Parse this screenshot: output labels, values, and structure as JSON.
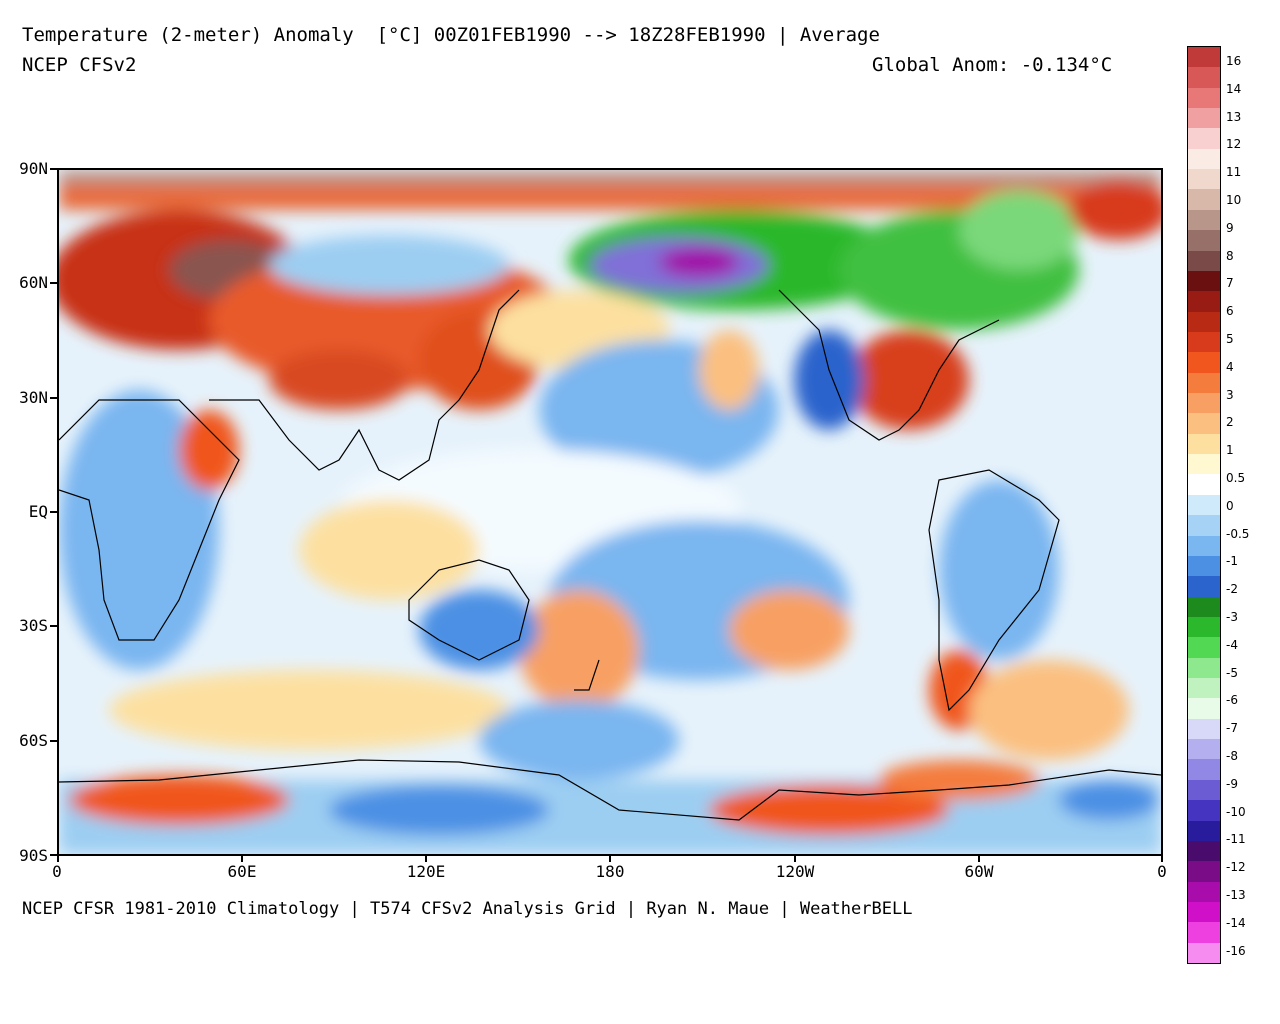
{
  "header": {
    "title": "Temperature (2-meter) Anomaly  [°C] 00Z01FEB1990 --> 18Z28FEB1990 | Average",
    "model": "NCEP CFSv2",
    "global_anom": "Global Anom: -0.134°C"
  },
  "footer": "NCEP CFSR 1981-2010 Climatology | T574 CFSv2 Analysis Grid | Ryan N. Maue | WeatherBELL",
  "lat_labels": [
    "90N",
    "60N",
    "30N",
    "EQ",
    "30S",
    "60S",
    "90S"
  ],
  "lon_labels": [
    "0",
    "60E",
    "120E",
    "180",
    "120W",
    "60W",
    "0"
  ],
  "colorbar": {
    "labels": [
      "16",
      "14",
      "13",
      "12",
      "11",
      "10",
      "9",
      "8",
      "7",
      "6",
      "5",
      "4",
      "3",
      "2",
      "1",
      "0.5",
      "0",
      "-0.5",
      "-1",
      "-2",
      "-3",
      "-4",
      "-5",
      "-6",
      "-7",
      "-8",
      "-9",
      "-10",
      "-11",
      "-12",
      "-13",
      "-14",
      "-16"
    ],
    "colors": [
      "#c03a3a",
      "#d85858",
      "#e87878",
      "#f0a0a0",
      "#f8d0d0",
      "#faece4",
      "#f0d8cc",
      "#d8b8a8",
      "#b8968a",
      "#98706a",
      "#7a4a48",
      "#6a1010",
      "#981c14",
      "#b82a14",
      "#d83a1c",
      "#f0561e",
      "#f47c3c",
      "#f8a064",
      "#fbc080",
      "#fde0a0",
      "#fff8d0",
      "#ffffff",
      "#cfeafa",
      "#a6d2f6",
      "#7ab6f0",
      "#4c90e4",
      "#2a64cc",
      "#1c8a1c",
      "#2cb82c",
      "#52d852",
      "#8ee88e",
      "#c0f2c0",
      "#e8fae8",
      "#d8d8f8",
      "#b4b0f0",
      "#9088e4",
      "#6c5cd4",
      "#4434c0",
      "#281c9c",
      "#4a0c6c",
      "#7a0c88",
      "#a80caa",
      "#d010c8",
      "#ee40e0",
      "#f68cf0"
    ]
  }
}
